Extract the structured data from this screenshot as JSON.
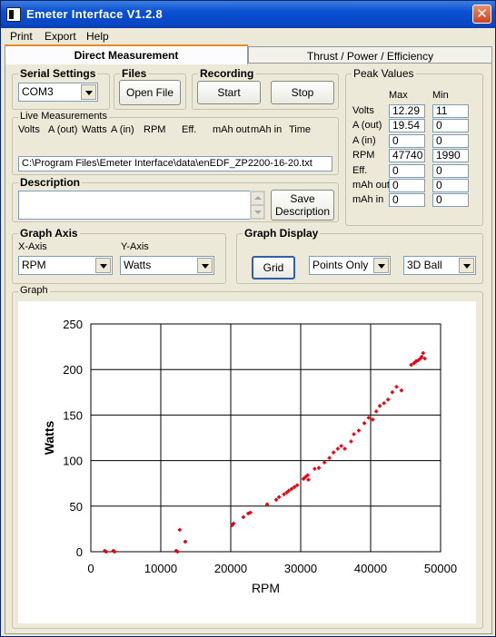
{
  "window": {
    "title": "Emeter Interface V1.2.8",
    "close_symbol": "✕"
  },
  "menu": {
    "items": [
      "Print",
      "Export",
      "Help"
    ]
  },
  "tabs": [
    {
      "label": "Direct Measurement",
      "active": true
    },
    {
      "label": "Thrust / Power / Efficiency",
      "active": false
    }
  ],
  "serial": {
    "legend": "Serial Settings",
    "port": "COM3"
  },
  "files": {
    "legend": "Files",
    "open_label": "Open File"
  },
  "recording": {
    "legend": "Recording",
    "start_label": "Start",
    "stop_label": "Stop"
  },
  "live": {
    "legend": "Live Measurements",
    "headers": [
      "Volts",
      "A (out)",
      "Watts",
      "A (in)",
      "RPM",
      "Eff.",
      "mAh out",
      "mAh in",
      "Time"
    ],
    "file_path": "C:\\Program Files\\Emeter Interface\\data\\enEDF_ZP2200-16-20.txt"
  },
  "description": {
    "legend": "Description",
    "value": "",
    "save_label_1": "Save",
    "save_label_2": "Description"
  },
  "peak": {
    "legend": "Peak Values",
    "max_header": "Max",
    "min_header": "Min",
    "rows": [
      {
        "label": "Volts",
        "max": "12.29",
        "min": "11"
      },
      {
        "label": "A (out)",
        "max": "19.54",
        "min": "0"
      },
      {
        "label": "A (in)",
        "max": "0",
        "min": "0"
      },
      {
        "label": "RPM",
        "max": "47740",
        "min": "1990"
      },
      {
        "label": "Eff.",
        "max": "0",
        "min": "0"
      },
      {
        "label": "mAh out",
        "max": "0",
        "min": "0"
      },
      {
        "label": "mAh in",
        "max": "0",
        "min": "0"
      }
    ]
  },
  "axis": {
    "legend": "Graph Axis",
    "x_label": "X-Axis",
    "x_value": "RPM",
    "y_label": "Y-Axis",
    "y_value": "Watts"
  },
  "display": {
    "legend": "Graph Display",
    "grid_label": "Grid",
    "mode": "Points Only",
    "marker": "3D Ball"
  },
  "graph": {
    "legend": "Graph",
    "readout_x": "47740.00",
    "readout_y": "212.12"
  },
  "colors": {
    "points": "#e8000f",
    "titlebar": "#0a4fd2"
  },
  "chart_data": {
    "type": "scatter",
    "xlabel": "RPM",
    "ylabel": "Watts",
    "xlim": [
      0,
      50000
    ],
    "ylim": [
      0,
      250
    ],
    "xticks": [
      0,
      10000,
      20000,
      30000,
      40000,
      50000
    ],
    "yticks": [
      0,
      50,
      100,
      150,
      200,
      250
    ],
    "grid": true,
    "series": [
      {
        "points": [
          [
            2000,
            1
          ],
          [
            2200,
            0
          ],
          [
            3200,
            1
          ],
          [
            3400,
            0
          ],
          [
            12200,
            1
          ],
          [
            12400,
            0
          ],
          [
            12700,
            24
          ],
          [
            13500,
            11
          ],
          [
            20200,
            29
          ],
          [
            20400,
            31
          ],
          [
            21800,
            38
          ],
          [
            22500,
            42
          ],
          [
            22800,
            43
          ],
          [
            25200,
            52
          ],
          [
            26500,
            57
          ],
          [
            26900,
            60
          ],
          [
            27600,
            63
          ],
          [
            28000,
            65
          ],
          [
            28300,
            67
          ],
          [
            28700,
            69
          ],
          [
            29100,
            71
          ],
          [
            29500,
            73
          ],
          [
            30400,
            80
          ],
          [
            30700,
            82
          ],
          [
            31000,
            84
          ],
          [
            31100,
            79
          ],
          [
            32000,
            91
          ],
          [
            32600,
            92
          ],
          [
            33400,
            98
          ],
          [
            34100,
            103
          ],
          [
            34700,
            109
          ],
          [
            35300,
            113
          ],
          [
            35800,
            116
          ],
          [
            36300,
            113
          ],
          [
            37200,
            121
          ],
          [
            37600,
            129
          ],
          [
            38300,
            133
          ],
          [
            39100,
            141
          ],
          [
            39700,
            147
          ],
          [
            40300,
            145
          ],
          [
            40800,
            154
          ],
          [
            41300,
            160
          ],
          [
            41900,
            163
          ],
          [
            42500,
            167
          ],
          [
            43100,
            175
          ],
          [
            43700,
            181
          ],
          [
            44400,
            177
          ],
          [
            45800,
            205
          ],
          [
            46200,
            207
          ],
          [
            46500,
            209
          ],
          [
            46800,
            210
          ],
          [
            47100,
            212
          ],
          [
            47300,
            214
          ],
          [
            47500,
            218
          ],
          [
            47740,
            212
          ]
        ]
      }
    ]
  }
}
